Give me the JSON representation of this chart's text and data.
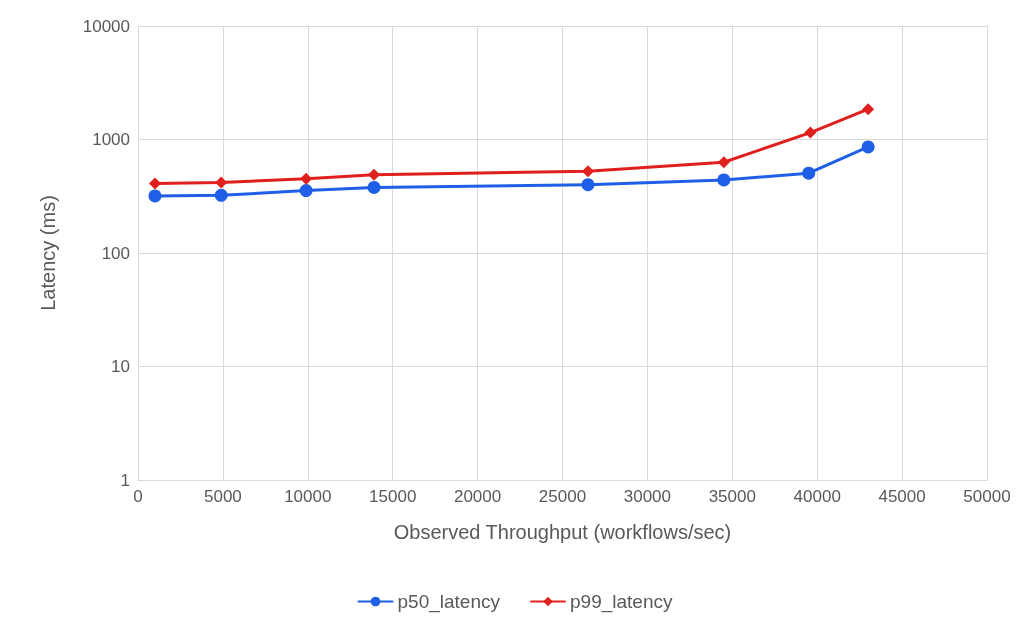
{
  "chart_data": {
    "type": "line",
    "xlabel": "Observed Throughput (workflows/sec)",
    "ylabel": "Latency (ms)",
    "log": "y",
    "grid": true,
    "legend": "bottom",
    "line_style": "solid",
    "xlim": [
      0,
      50000
    ],
    "xticks": [
      0,
      5000,
      10000,
      15000,
      20000,
      25000,
      30000,
      35000,
      40000,
      45000,
      50000
    ],
    "ylim": [
      1,
      10000
    ],
    "yticks": [
      1,
      10,
      100,
      1000,
      10000
    ],
    "series": [
      {
        "name": "p50_latency",
        "color": "#1f5fe8",
        "marker": "circle",
        "x": [
          1000,
          4900,
          9900,
          13900,
          26500,
          34500,
          39500,
          43000
        ],
        "values": [
          318,
          322,
          355,
          378,
          400,
          440,
          505,
          860
        ]
      },
      {
        "name": "p99_latency",
        "color": "#e0201e",
        "marker": "diamond",
        "x": [
          1000,
          4900,
          9900,
          13900,
          26500,
          34500,
          39600,
          43000
        ],
        "values": [
          410,
          418,
          450,
          490,
          525,
          630,
          1150,
          1850
        ]
      }
    ]
  }
}
